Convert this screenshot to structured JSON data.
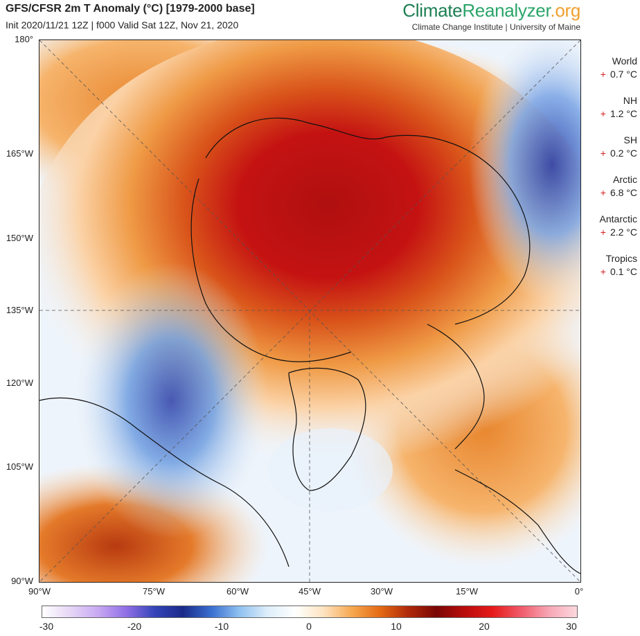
{
  "header": {
    "title": "GFS/CFSR 2m T Anomaly (°C) [1979-2000 base]",
    "subtitle": "Init 2020/11/21 12Z | f000 Valid Sat 12Z, Nov 21, 2020"
  },
  "brand": {
    "part1": "Climate",
    "part2": "Reanalyzer",
    "part3": ".org",
    "subline": "Climate Change Institute | University of Maine"
  },
  "map": {
    "lat_labels": [
      "180°",
      "165°W",
      "150°W",
      "135°W",
      "120°W",
      "105°W",
      "90°W"
    ],
    "lon_labels": [
      "90°W",
      "75°W",
      "60°W",
      "45°W",
      "30°W",
      "15°W",
      "0°"
    ]
  },
  "stats": [
    {
      "name": "World",
      "sign": "+",
      "value": "0.7 °C"
    },
    {
      "name": "NH",
      "sign": "+",
      "value": "1.2 °C"
    },
    {
      "name": "SH",
      "sign": "+",
      "value": "0.2 °C"
    },
    {
      "name": "Arctic",
      "sign": "+",
      "value": "6.8 °C"
    },
    {
      "name": "Antarctic",
      "sign": "+",
      "value": "2.2 °C"
    },
    {
      "name": "Tropics",
      "sign": "+",
      "value": "0.1 °C"
    }
  ],
  "colorbar": {
    "ticks": [
      "-30",
      "-20",
      "-10",
      "0",
      "10",
      "20",
      "30"
    ],
    "colors": [
      "#ffffff",
      "#e6d6f6",
      "#c7a8f2",
      "#8f6ee6",
      "#3444b8",
      "#1a2a8a",
      "#3a6fd0",
      "#8ec0f0",
      "#ddeefa",
      "#ffffff",
      "#fde3c0",
      "#f7a850",
      "#e46a14",
      "#b02a0a",
      "#7a0606",
      "#b80c0c",
      "#e61a1a",
      "#f05a6a",
      "#f7a6b4",
      "#fbd8de"
    ]
  }
}
